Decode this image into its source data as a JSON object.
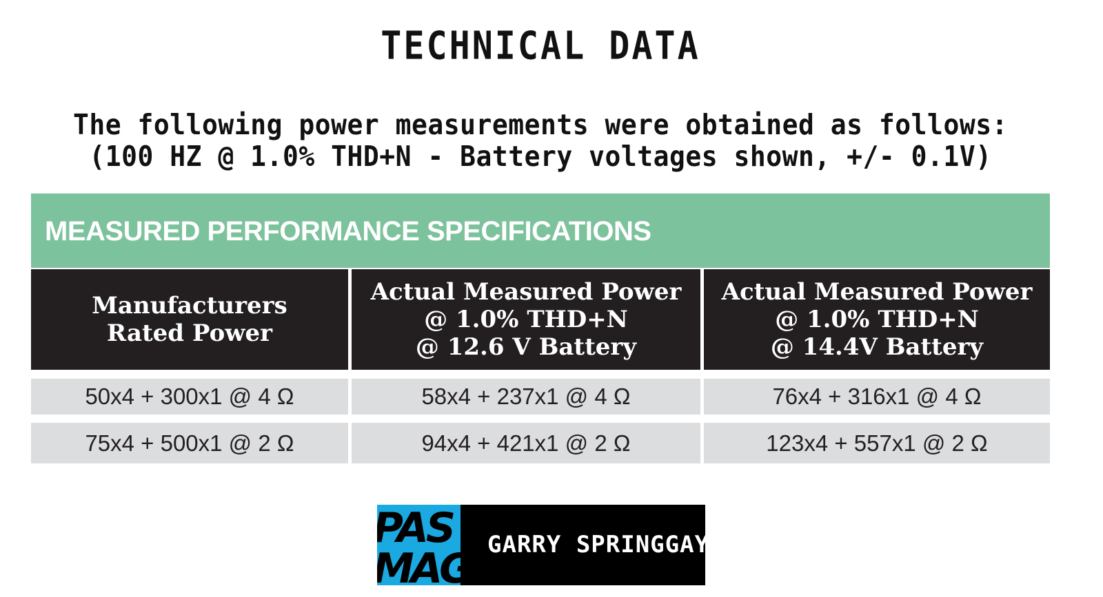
{
  "page": {
    "title": "TECHNICAL DATA",
    "intro_line_1": "The following power measurements were obtained as follows:",
    "intro_line_2": "(100 HZ @ 1.0% THD+N - Battery voltages shown, +/- 0.1V)"
  },
  "table": {
    "title": "MEASURED PERFORMANCE SPECIFICATIONS",
    "header_color": "#7cc29c",
    "columns": [
      {
        "lines": [
          "Manufacturers",
          "Rated Power"
        ]
      },
      {
        "lines": [
          "Actual Measured Power",
          "@  1.0% THD+N",
          "@ 12.6 V Battery"
        ]
      },
      {
        "lines": [
          "Actual Measured Power",
          "@  1.0% THD+N",
          "@ 14.4V Battery"
        ]
      }
    ],
    "rows": [
      [
        "50x4 + 300x1 @ 4 Ω",
        "58x4 + 237x1 @ 4 Ω",
        "76x4 + 316x1 @ 4 Ω"
      ],
      [
        "75x4 + 500x1 @ 2 Ω",
        "94x4 + 421x1 @ 2 Ω",
        "123x4 + 557x1 @ 2 Ω"
      ]
    ]
  },
  "credit": {
    "logo_text": "PAS MAG",
    "author": "GARRY SPRINGGAY",
    "logo_color": "#1ba9e1"
  }
}
